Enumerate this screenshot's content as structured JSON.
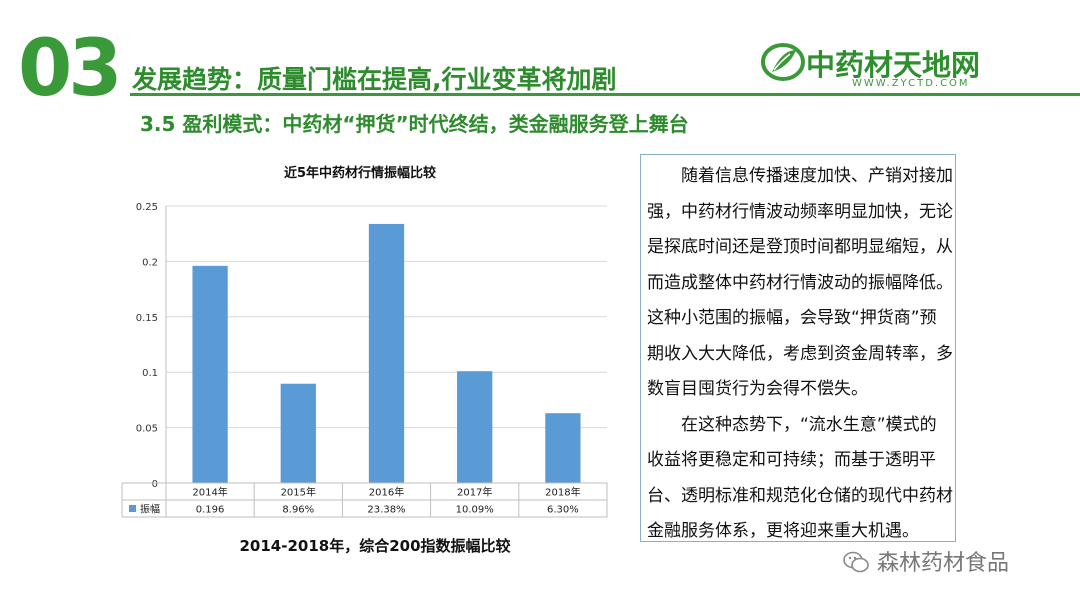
{
  "header": {
    "section_number": "03",
    "title": "发展趋势：质量门槛在提高,行业变革将加剧",
    "subtitle": "3.5  盈利模式：中药材“押货”时代终结，类金融服务登上舞台"
  },
  "logo": {
    "name": "中药材天地网",
    "url": "WWW.ZYCTD.COM"
  },
  "chart_data": {
    "type": "bar",
    "title": "近5年中药材行情振幅比较",
    "categories": [
      "2014年",
      "2015年",
      "2016年",
      "2017年",
      "2018年"
    ],
    "series": [
      {
        "name": "振幅",
        "values": [
          0.196,
          0.0896,
          0.2338,
          0.1009,
          0.063
        ],
        "labels": [
          "0.196",
          "8.96%",
          "23.38%",
          "10.09%",
          "6.30%"
        ]
      }
    ],
    "yticks": [
      "0",
      "0.05",
      "0.1",
      "0.15",
      "0.2",
      "0.25"
    ],
    "ylim": [
      0,
      0.25
    ],
    "grid": true,
    "bar_color": "#5b9bd5",
    "data_table": true
  },
  "chart_caption": "2014-2018年，综合200指数振幅比较",
  "text": {
    "paragraphs": [
      "随着信息传播速度加快、产销对接加强，中药材行情波动频率明显加快，无论是探底时间还是登顶时间都明显缩短，从而造成整体中药材行情波动的振幅降低。这种小范围的振幅，会导致“押货商”预期收入大大降低，考虑到资金周转率，多数盲目囤货行为会得不偿失。",
      "在这种态势下，“流水生意”模式的收益将更稳定和可持续；而基于透明平台、透明标准和规范化仓储的现代中药材金融服务体系，更将迎来重大机遇。"
    ]
  },
  "watermark": "森林药材食品",
  "colors": {
    "accent": "#3a9a3a",
    "bar": "#5b9bd5"
  }
}
